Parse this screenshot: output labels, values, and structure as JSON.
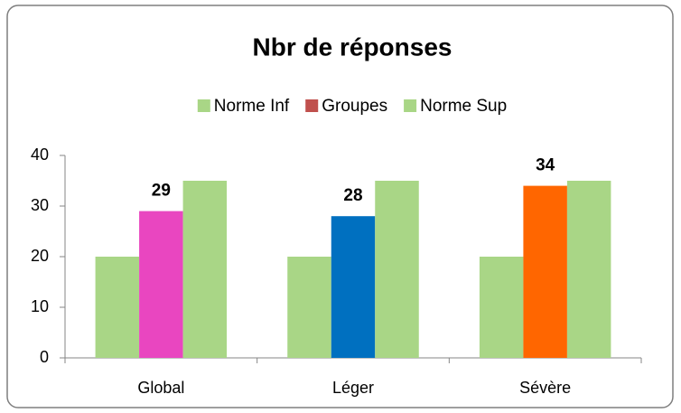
{
  "chart_data": {
    "type": "bar",
    "title": "Nbr de réponses",
    "categories": [
      "Global",
      "Léger",
      "Sévère"
    ],
    "series": [
      {
        "name": "Norme Inf",
        "color": "#a9d686",
        "values": [
          20,
          20,
          20
        ]
      },
      {
        "name": "Groupes",
        "color": "#c0504d",
        "colors": [
          "#e946c0",
          "#0070c0",
          "#ff6600"
        ],
        "values": [
          29,
          28,
          34
        ],
        "data_labels": true
      },
      {
        "name": "Norme Sup",
        "color": "#a9d686",
        "values": [
          35,
          35,
          35
        ]
      }
    ],
    "ylim": [
      0,
      40
    ],
    "yticks": [
      0,
      10,
      20,
      30,
      40
    ],
    "legend": "top",
    "grid": false
  }
}
